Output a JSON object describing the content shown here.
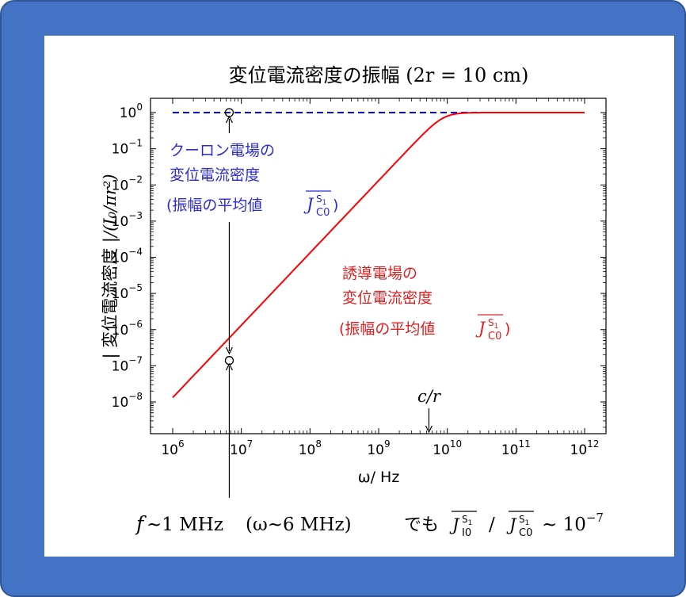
{
  "chart_data": {
    "type": "line",
    "title_main": "変位電流密度の振幅",
    "title_sub": "(2r = 10 cm)",
    "xlabel": "ω/ Hz",
    "ylabel_jp": "| 変位電流密度 |",
    "ylabel_math": "/(I₀/πr²)",
    "xscale": "log",
    "yscale": "log",
    "xlim": [
      1000000.0,
      1000000000000.0
    ],
    "ylim": [
      5e-09,
      1.5
    ],
    "x_ticks": [
      {
        "exp": "6",
        "value": 1000000.0
      },
      {
        "exp": "7",
        "value": 10000000.0
      },
      {
        "exp": "8",
        "value": 100000000.0
      },
      {
        "exp": "9",
        "value": 1000000000.0
      },
      {
        "exp": "10",
        "value": 10000000000.0
      },
      {
        "exp": "11",
        "value": 100000000000.0
      },
      {
        "exp": "12",
        "value": 1000000000000.0
      }
    ],
    "y_ticks": [
      {
        "exp": "0",
        "value": 1
      },
      {
        "exp": "−1",
        "value": 0.1
      },
      {
        "exp": "−2",
        "value": 0.01
      },
      {
        "exp": "−3",
        "value": 0.001
      },
      {
        "exp": "−4",
        "value": 0.0001
      },
      {
        "exp": "−5",
        "value": 1e-05
      },
      {
        "exp": "−6",
        "value": 1e-06
      },
      {
        "exp": "−7",
        "value": 1e-07
      },
      {
        "exp": "−8",
        "value": 1e-08
      }
    ],
    "tick_base": "10",
    "grid": false,
    "series": [
      {
        "color": "#0000ff",
        "style": "dashed",
        "formula": "constant 1",
        "x": [
          1000000.0,
          1000000000000.0
        ],
        "y": [
          1,
          1
        ]
      },
      {
        "color": "#ff0000",
        "style": "solid",
        "formula": "min(1, (ω/(c/r))^2 / (1+(ω/(c/r))^2)) normalized",
        "char_freq": 6000000000.0,
        "x_start": 1000000.0,
        "x_end": 1000000000000.0
      }
    ],
    "markers": [
      {
        "x": 6000000.0,
        "y": 1,
        "shape": "circle"
      },
      {
        "x": 6000000.0,
        "y": 1.4e-07,
        "shape": "circle"
      }
    ],
    "annotations": {
      "blue_line1": "クーロン電場の",
      "blue_line2": "変位電流密度",
      "blue_line3_prefix": "(振幅の平均値",
      "blue_line3_suffix": ")",
      "blue_sym_main": "J",
      "blue_sym_sub": "C0",
      "blue_sym_sup": "S1",
      "red_line1": "誘導電場の",
      "red_line2": "変位電流密度",
      "red_line3_prefix": "(振幅の平均値",
      "red_line3_suffix": ")",
      "red_sym_main": "J",
      "red_sym_sub": "C0",
      "red_sym_sup": "S1",
      "cr_label": "c/r",
      "cr_x": 6000000000.0
    },
    "bottom_text": {
      "f_sym": "f",
      "part1": "~1 MHz",
      "part2": "(ω~6 MHz)",
      "part3": "でも",
      "sym1_main": "J",
      "sym1_sub": "I0",
      "sym1_sup": "S1",
      "slash": "/",
      "sym2_main": "J",
      "sym2_sub": "C0",
      "sym2_sup": "S1",
      "tail": "~ 10",
      "tail_exp": "−7"
    }
  },
  "colors": {
    "frame": "#4472c4",
    "blue": "#0000ff",
    "red": "#ff0000",
    "blue_text": "#2b2bd6",
    "red_text": "#e02020"
  }
}
